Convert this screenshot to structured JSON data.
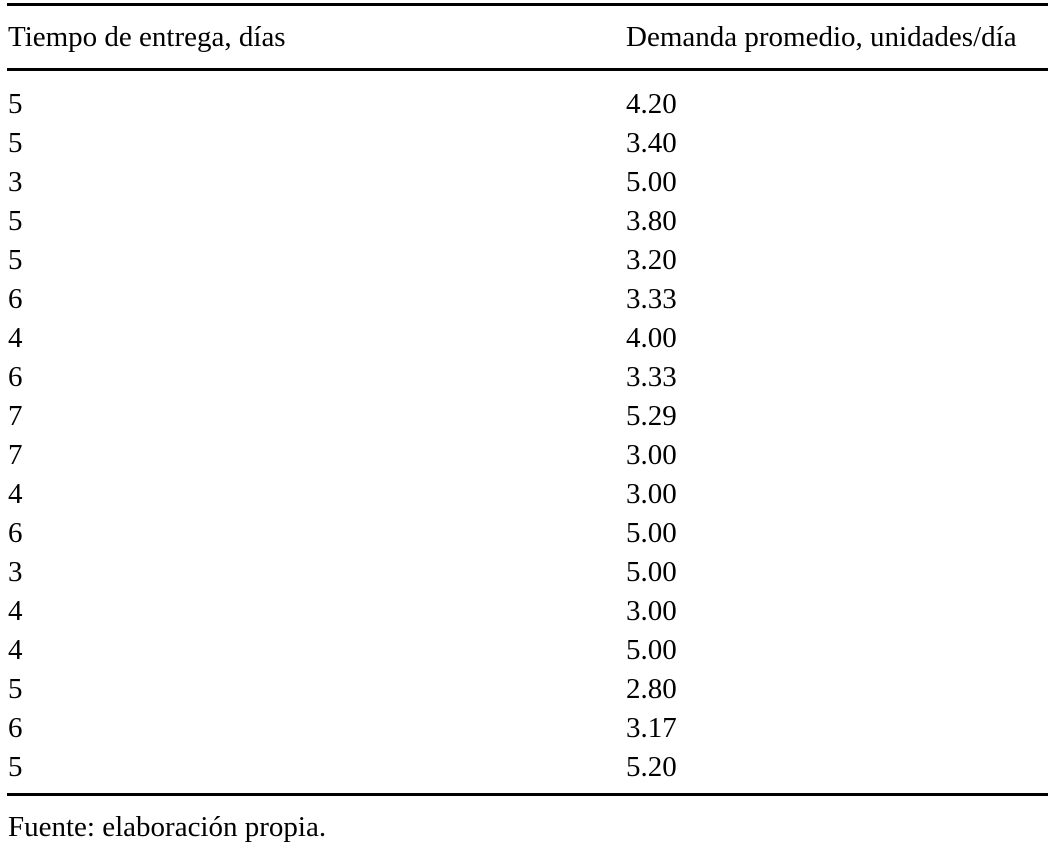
{
  "table": {
    "columns": [
      "Tiempo de entrega, días",
      "Demanda promedio, unidades/día"
    ],
    "rows": [
      [
        "5",
        "4.20"
      ],
      [
        "5",
        "3.40"
      ],
      [
        "3",
        "5.00"
      ],
      [
        "5",
        "3.80"
      ],
      [
        "5",
        "3.20"
      ],
      [
        "6",
        "3.33"
      ],
      [
        "4",
        "4.00"
      ],
      [
        "6",
        "3.33"
      ],
      [
        "7",
        "5.29"
      ],
      [
        "7",
        "3.00"
      ],
      [
        "4",
        "3.00"
      ],
      [
        "6",
        "5.00"
      ],
      [
        "3",
        "5.00"
      ],
      [
        "4",
        "3.00"
      ],
      [
        "4",
        "5.00"
      ],
      [
        "5",
        "2.80"
      ],
      [
        "6",
        "3.17"
      ],
      [
        "5",
        "5.20"
      ]
    ]
  },
  "source_note": "Fuente: elaboración propia.",
  "colors": {
    "text": "#000000",
    "background": "#ffffff",
    "rule": "#000000"
  },
  "chart_data": {
    "type": "table",
    "title": "",
    "columns": [
      "Tiempo de entrega, días",
      "Demanda promedio, unidades/día"
    ],
    "rows": [
      [
        5,
        4.2
      ],
      [
        5,
        3.4
      ],
      [
        3,
        5.0
      ],
      [
        5,
        3.8
      ],
      [
        5,
        3.2
      ],
      [
        6,
        3.33
      ],
      [
        4,
        4.0
      ],
      [
        6,
        3.33
      ],
      [
        7,
        5.29
      ],
      [
        7,
        3.0
      ],
      [
        4,
        3.0
      ],
      [
        6,
        5.0
      ],
      [
        3,
        5.0
      ],
      [
        4,
        3.0
      ],
      [
        4,
        5.0
      ],
      [
        5,
        2.8
      ],
      [
        6,
        3.17
      ],
      [
        5,
        5.2
      ]
    ],
    "footnote": "Fuente: elaboración propia."
  }
}
